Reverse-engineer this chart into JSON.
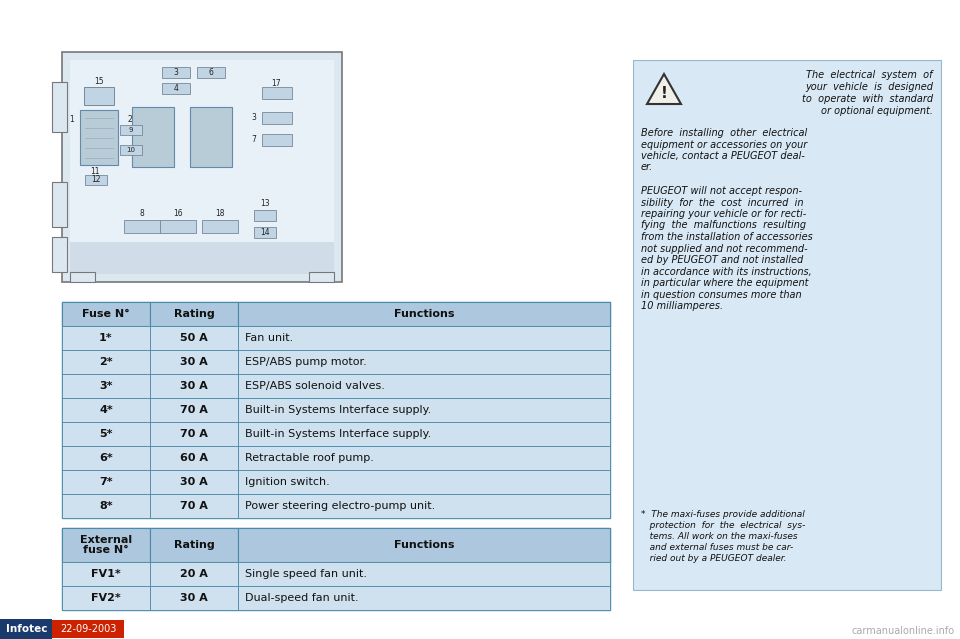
{
  "bg_color": "#ffffff",
  "table_bg": "#cfe0ef",
  "table_header_bg": "#adc8de",
  "table_border": "#4a8aaa",
  "right_panel_bg": "#d8e8f4",
  "right_panel_border": "#9ab8cc",
  "fuse_table": {
    "headers": [
      "Fuse N°",
      "Rating",
      "Functions"
    ],
    "rows": [
      [
        "1*",
        "50 A",
        "Fan unit."
      ],
      [
        "2*",
        "30 A",
        "ESP/ABS pump motor."
      ],
      [
        "3*",
        "30 A",
        "ESP/ABS solenoid valves."
      ],
      [
        "4*",
        "70 A",
        "Built-in Systems Interface supply."
      ],
      [
        "5*",
        "70 A",
        "Built-in Systems Interface supply."
      ],
      [
        "6*",
        "60 A",
        "Retractable roof pump."
      ],
      [
        "7*",
        "30 A",
        "Ignition switch."
      ],
      [
        "8*",
        "70 A",
        "Power steering electro-pump unit."
      ]
    ]
  },
  "ext_table": {
    "headers": [
      "External\nfuse N°",
      "Rating",
      "Functions"
    ],
    "rows": [
      [
        "FV1*",
        "20 A",
        "Single speed fan unit."
      ],
      [
        "FV2*",
        "30 A",
        "Dual-speed fan unit."
      ]
    ]
  },
  "warning_text_line1": "The  electrical  system  of",
  "warning_text_line2": "your  vehicle  is  designed",
  "warning_text_line3": "to  operate  with  standard",
  "warning_text_line4": "or optional equipment.",
  "para1_lines": [
    "Before  installing  other  electrical",
    "equipment or accessories on your",
    "vehicle, contact a PEUGEOT deal-",
    "er."
  ],
  "para2_lines": [
    "PEUGEOT will not accept respon-",
    "sibility  for  the  cost  incurred  in",
    "repairing your vehicle or for recti-",
    "fying  the  malfunctions  resulting",
    "from the installation of accessories",
    "not supplied and not recommend-",
    "ed by PEUGEOT and not installed",
    "in accordance with its instructions,",
    "in particular where the equipment",
    "in question consumes more than",
    "10 milliamperes."
  ],
  "footnote_lines": [
    "*  The maxi-fuses provide additional",
    "   protection  for  the  electrical  sys-",
    "   tems. All work on the maxi-fuses",
    "   and external fuses must be car-",
    "   ried out by a PEUGEOT dealer."
  ],
  "infotec_bg": "#1a3a6b",
  "infotec_text": "Infotec",
  "date_bg": "#cc2200",
  "date_text": "22-09-2003",
  "watermark": "carmanualonline.info",
  "diag_bg": "#dce8f0",
  "diag_inner_bg": "#e8f0f8",
  "diag_border": "#888888",
  "fuse_color": "#c0d4e4",
  "relay_color": "#b8ccd8",
  "relay_dark": "#8aaabb"
}
